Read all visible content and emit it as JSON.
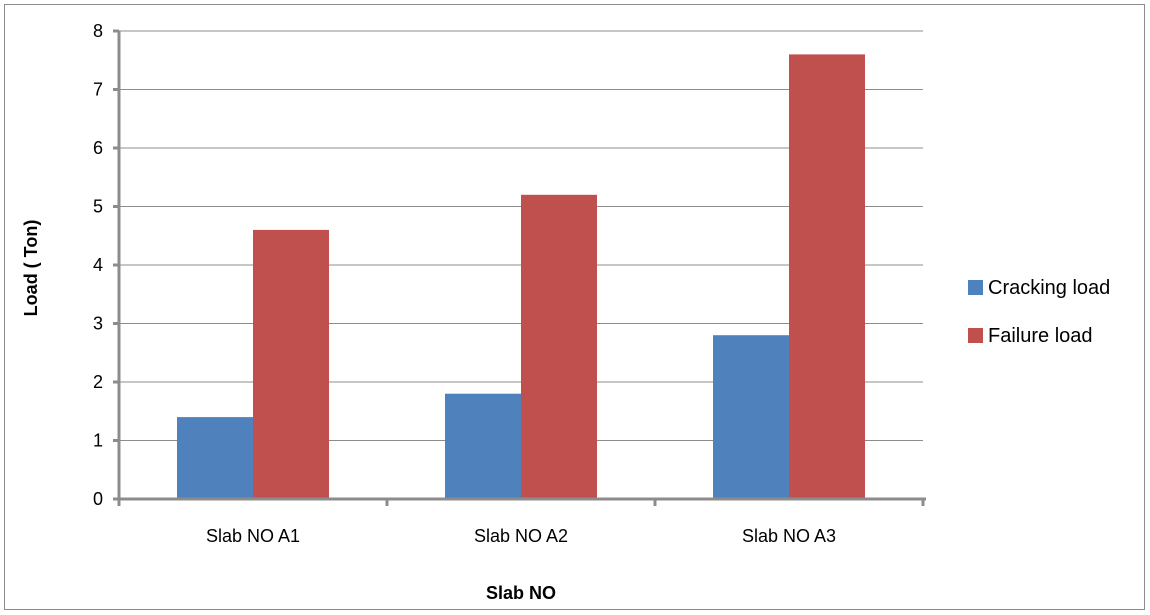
{
  "chart_data": {
    "type": "bar",
    "categories": [
      "Slab NO A1",
      "Slab NO A2",
      "Slab NO A3"
    ],
    "series": [
      {
        "name": "Cracking load",
        "values": [
          1.4,
          1.8,
          2.8
        ],
        "color": "#4f81bd"
      },
      {
        "name": "Failure load",
        "values": [
          4.6,
          5.2,
          7.6
        ],
        "color": "#c0504d"
      }
    ],
    "title": "",
    "xlabel": "Slab NO",
    "ylabel": "Load ( Ton)",
    "ylim": [
      0,
      8
    ],
    "yticks": [
      "0",
      "1",
      "2",
      "3",
      "4",
      "5",
      "6",
      "7",
      "8"
    ],
    "grid": true,
    "legend_position": "right"
  }
}
